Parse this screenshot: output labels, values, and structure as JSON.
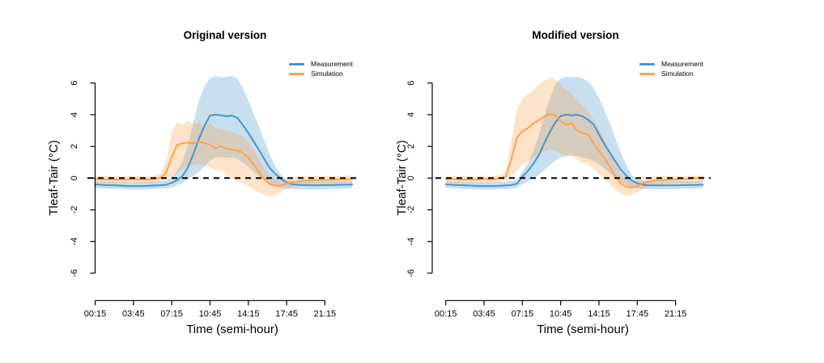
{
  "figure": {
    "background": "#ffffff",
    "colors": {
      "measurement_line": "#4A94C9",
      "simulation_line": "#FAA34C",
      "band_opacity": 0.3,
      "zero_line": "#000000",
      "axis": "#000000",
      "text": "#000000"
    }
  },
  "chart_data": [
    {
      "type": "line",
      "title": "Original version",
      "xlabel": "Time (semi-hour)",
      "ylabel": "Tleaf-Tair (°C)",
      "ylim": [
        -6,
        6
      ],
      "grid": false,
      "zero_reference_line": 0,
      "y_ticks": [
        6,
        4,
        2,
        0,
        -2,
        -4,
        -6
      ],
      "x_tick_labels": [
        "00:15",
        "03:45",
        "07:15",
        "10:45",
        "14:15",
        "17:45",
        "21:15"
      ],
      "x_points": {
        "start": "00:15",
        "step_minutes": 30,
        "count": 48
      },
      "legend": [
        {
          "label": "Measurement",
          "series": "measurement"
        },
        {
          "label": "Simulation",
          "series": "simulation"
        }
      ],
      "series": [
        {
          "name": "Measurement",
          "color_key": "measurement_line",
          "values": [
            -0.4,
            -0.42,
            -0.44,
            -0.45,
            -0.46,
            -0.48,
            -0.5,
            -0.5,
            -0.5,
            -0.5,
            -0.48,
            -0.46,
            -0.45,
            -0.42,
            -0.3,
            -0.12,
            0.15,
            0.7,
            1.55,
            2.5,
            3.3,
            3.95,
            4.0,
            3.97,
            3.9,
            3.95,
            3.8,
            3.35,
            2.85,
            2.3,
            1.75,
            1.15,
            0.6,
            0.25,
            -0.05,
            -0.28,
            -0.38,
            -0.42,
            -0.44,
            -0.45,
            -0.45,
            -0.45,
            -0.44,
            -0.44,
            -0.43,
            -0.42,
            -0.42,
            -0.4
          ],
          "band_upper": [
            -0.18,
            -0.2,
            -0.22,
            -0.22,
            -0.24,
            -0.25,
            -0.26,
            -0.26,
            -0.26,
            -0.25,
            -0.24,
            -0.22,
            -0.2,
            -0.15,
            0.05,
            0.45,
            1.1,
            2.1,
            3.6,
            4.9,
            5.8,
            6.3,
            6.45,
            6.35,
            6.4,
            6.45,
            6.3,
            5.7,
            4.9,
            4.05,
            3.2,
            2.3,
            1.4,
            0.7,
            0.2,
            -0.1,
            -0.18,
            -0.2,
            -0.21,
            -0.22,
            -0.22,
            -0.22,
            -0.21,
            -0.21,
            -0.2,
            -0.2,
            -0.19,
            -0.18
          ],
          "band_lower": [
            -0.62,
            -0.64,
            -0.66,
            -0.68,
            -0.69,
            -0.7,
            -0.72,
            -0.72,
            -0.72,
            -0.71,
            -0.7,
            -0.68,
            -0.66,
            -0.64,
            -0.58,
            -0.45,
            -0.28,
            -0.05,
            0.15,
            0.4,
            0.75,
            1.1,
            1.3,
            1.32,
            1.28,
            1.3,
            1.2,
            1.0,
            0.7,
            0.4,
            0.1,
            -0.12,
            -0.32,
            -0.5,
            -0.6,
            -0.66,
            -0.68,
            -0.69,
            -0.7,
            -0.7,
            -0.7,
            -0.7,
            -0.69,
            -0.68,
            -0.67,
            -0.66,
            -0.65,
            -0.63
          ]
        },
        {
          "name": "Simulation",
          "color_key": "simulation_line",
          "values": [
            -0.08,
            -0.06,
            -0.08,
            -0.1,
            -0.08,
            -0.1,
            -0.08,
            -0.06,
            -0.08,
            -0.1,
            -0.08,
            -0.05,
            0.02,
            0.35,
            1.3,
            2.1,
            2.2,
            2.25,
            2.2,
            2.28,
            2.22,
            2.1,
            1.88,
            2.0,
            1.85,
            1.8,
            1.75,
            1.58,
            1.3,
            0.85,
            0.35,
            -0.1,
            -0.4,
            -0.5,
            -0.45,
            -0.35,
            -0.26,
            -0.2,
            -0.17,
            -0.15,
            -0.14,
            -0.13,
            -0.12,
            -0.11,
            -0.1,
            -0.09,
            -0.07,
            -0.05
          ],
          "band_upper": [
            0.12,
            0.14,
            0.12,
            0.1,
            0.12,
            0.1,
            0.12,
            0.14,
            0.12,
            0.1,
            0.12,
            0.15,
            0.3,
            1.1,
            2.9,
            3.5,
            3.4,
            3.6,
            3.4,
            3.52,
            3.3,
            3.5,
            3.15,
            3.1,
            3.0,
            2.92,
            2.8,
            2.6,
            2.3,
            1.8,
            1.2,
            0.6,
            0.1,
            -0.08,
            -0.08,
            -0.02,
            0.04,
            0.08,
            0.1,
            0.1,
            0.11,
            0.12,
            0.12,
            0.13,
            0.13,
            0.14,
            0.15,
            0.16
          ],
          "band_lower": [
            -0.3,
            -0.28,
            -0.3,
            -0.32,
            -0.3,
            -0.32,
            -0.3,
            -0.28,
            -0.3,
            -0.32,
            -0.3,
            -0.28,
            -0.22,
            -0.1,
            0.05,
            0.35,
            0.6,
            0.8,
            0.82,
            0.9,
            0.8,
            0.7,
            0.45,
            0.52,
            0.25,
            0.02,
            -0.18,
            -0.32,
            -0.5,
            -0.72,
            -0.92,
            -1.05,
            -1.12,
            -1.05,
            -0.88,
            -0.7,
            -0.56,
            -0.47,
            -0.42,
            -0.38,
            -0.36,
            -0.35,
            -0.34,
            -0.33,
            -0.32,
            -0.31,
            -0.3,
            -0.28
          ]
        }
      ]
    },
    {
      "type": "line",
      "title": "Modified version",
      "xlabel": "Time (semi-hour)",
      "ylabel": "Tleaf-Tair (°C)",
      "ylim": [
        -6,
        6
      ],
      "grid": false,
      "zero_reference_line": 0,
      "y_ticks": [
        6,
        4,
        2,
        0,
        -2,
        -4,
        -6
      ],
      "x_tick_labels": [
        "00:15",
        "03:45",
        "07:15",
        "10:45",
        "14:15",
        "17:45",
        "21:15"
      ],
      "x_points": {
        "start": "00:15",
        "step_minutes": 30,
        "count": 48
      },
      "legend": [
        {
          "label": "Measurement",
          "series": "measurement"
        },
        {
          "label": "Simulation",
          "series": "simulation"
        }
      ],
      "series": [
        {
          "name": "Measurement",
          "color_key": "measurement_line",
          "values": [
            -0.4,
            -0.42,
            -0.44,
            -0.45,
            -0.46,
            -0.48,
            -0.5,
            -0.5,
            -0.5,
            -0.5,
            -0.48,
            -0.46,
            -0.44,
            -0.35,
            0.08,
            0.45,
            0.9,
            1.45,
            2.2,
            2.9,
            3.5,
            3.93,
            4.0,
            3.96,
            4.0,
            3.9,
            3.68,
            3.4,
            2.75,
            2.15,
            1.6,
            1.05,
            0.53,
            0.15,
            -0.15,
            -0.33,
            -0.42,
            -0.45,
            -0.46,
            -0.46,
            -0.46,
            -0.46,
            -0.45,
            -0.45,
            -0.44,
            -0.44,
            -0.43,
            -0.42
          ],
          "band_upper": [
            -0.18,
            -0.2,
            -0.22,
            -0.22,
            -0.24,
            -0.25,
            -0.26,
            -0.26,
            -0.26,
            -0.25,
            -0.24,
            -0.22,
            -0.18,
            -0.08,
            0.4,
            0.95,
            1.7,
            2.7,
            3.9,
            5.0,
            5.9,
            6.3,
            6.42,
            6.35,
            6.4,
            6.3,
            6.1,
            5.7,
            5.05,
            4.3,
            3.45,
            2.5,
            1.6,
            0.8,
            0.2,
            -0.1,
            -0.18,
            -0.2,
            -0.21,
            -0.22,
            -0.22,
            -0.22,
            -0.21,
            -0.21,
            -0.2,
            -0.2,
            -0.19,
            -0.18
          ],
          "band_lower": [
            -0.62,
            -0.64,
            -0.66,
            -0.68,
            -0.69,
            -0.7,
            -0.72,
            -0.72,
            -0.72,
            -0.71,
            -0.7,
            -0.68,
            -0.66,
            -0.6,
            -0.4,
            -0.2,
            0.0,
            0.2,
            0.5,
            0.8,
            1.1,
            1.3,
            1.4,
            1.38,
            1.4,
            1.3,
            1.22,
            1.1,
            0.88,
            0.6,
            0.3,
            0.0,
            -0.25,
            -0.45,
            -0.58,
            -0.66,
            -0.68,
            -0.69,
            -0.7,
            -0.7,
            -0.7,
            -0.7,
            -0.69,
            -0.68,
            -0.67,
            -0.66,
            -0.65,
            -0.63
          ]
        },
        {
          "name": "Simulation",
          "color_key": "simulation_line",
          "values": [
            -0.08,
            -0.05,
            -0.08,
            -0.1,
            -0.07,
            -0.1,
            -0.08,
            -0.05,
            -0.08,
            -0.06,
            0.0,
            0.1,
            1.2,
            2.55,
            2.95,
            3.15,
            3.45,
            3.65,
            3.9,
            4.05,
            3.95,
            3.6,
            3.35,
            3.48,
            3.0,
            2.85,
            2.75,
            2.2,
            1.7,
            1.28,
            0.7,
            0.1,
            -0.35,
            -0.55,
            -0.6,
            -0.5,
            -0.32,
            -0.22,
            -0.16,
            -0.13,
            -0.12,
            -0.1,
            -0.08,
            -0.06,
            -0.05,
            -0.03,
            0.0,
            0.05
          ],
          "band_upper": [
            0.12,
            0.15,
            0.12,
            0.1,
            0.13,
            0.1,
            0.12,
            0.15,
            0.12,
            0.14,
            0.2,
            0.45,
            2.4,
            4.3,
            5.0,
            5.3,
            5.55,
            5.9,
            6.15,
            6.35,
            6.25,
            5.9,
            5.55,
            5.35,
            4.9,
            4.55,
            4.2,
            3.7,
            3.1,
            2.4,
            1.6,
            0.9,
            0.2,
            -0.1,
            -0.15,
            -0.08,
            0.02,
            0.06,
            0.09,
            0.1,
            0.11,
            0.12,
            0.13,
            0.13,
            0.14,
            0.15,
            0.16,
            0.18
          ],
          "band_lower": [
            -0.3,
            -0.27,
            -0.3,
            -0.32,
            -0.29,
            -0.32,
            -0.3,
            -0.27,
            -0.3,
            -0.28,
            -0.22,
            -0.15,
            0.1,
            0.5,
            0.8,
            1.05,
            1.3,
            1.5,
            1.7,
            1.82,
            1.75,
            1.55,
            1.4,
            1.48,
            1.18,
            1.0,
            0.9,
            0.6,
            0.28,
            -0.02,
            -0.4,
            -0.75,
            -1.0,
            -1.12,
            -1.05,
            -0.88,
            -0.68,
            -0.52,
            -0.43,
            -0.38,
            -0.36,
            -0.34,
            -0.32,
            -0.31,
            -0.3,
            -0.29,
            -0.28,
            -0.26
          ]
        }
      ]
    }
  ]
}
